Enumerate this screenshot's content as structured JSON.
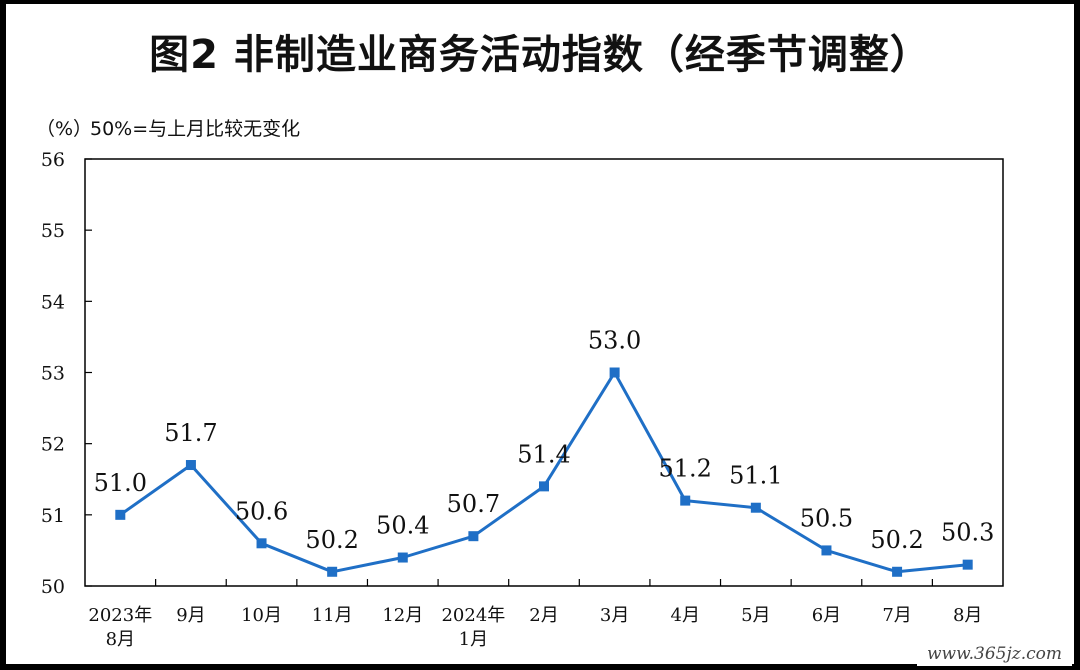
{
  "chart_data": {
    "type": "line",
    "title": "图2  非制造业商务活动指数（经季节调整）",
    "ylabel": "（%）",
    "note": "50%=与上月比较无变化",
    "categories": [
      [
        "2023年",
        "8月"
      ],
      [
        "9月"
      ],
      [
        "10月"
      ],
      [
        "11月"
      ],
      [
        "12月"
      ],
      [
        "2024年",
        "1月"
      ],
      [
        "2月"
      ],
      [
        "3月"
      ],
      [
        "4月"
      ],
      [
        "5月"
      ],
      [
        "6月"
      ],
      [
        "7月"
      ],
      [
        "8月"
      ]
    ],
    "series": [
      {
        "values": [
          51.0,
          51.7,
          50.6,
          50.2,
          50.4,
          50.7,
          51.4,
          53.0,
          51.2,
          51.1,
          50.5,
          50.2,
          50.3
        ],
        "data_labels": [
          "51.0",
          "51.7",
          "50.6",
          "50.2",
          "50.4",
          "50.7",
          "51.4",
          "53.0",
          "51.2",
          "51.1",
          "50.5",
          "50.2",
          "50.3"
        ],
        "color": "#1f6fc6"
      }
    ],
    "yticks": [
      50,
      51,
      52,
      53,
      54,
      55,
      56
    ],
    "ylim": [
      50,
      56
    ],
    "grid": false,
    "legend": "none"
  },
  "watermark": "www.365jz.com"
}
